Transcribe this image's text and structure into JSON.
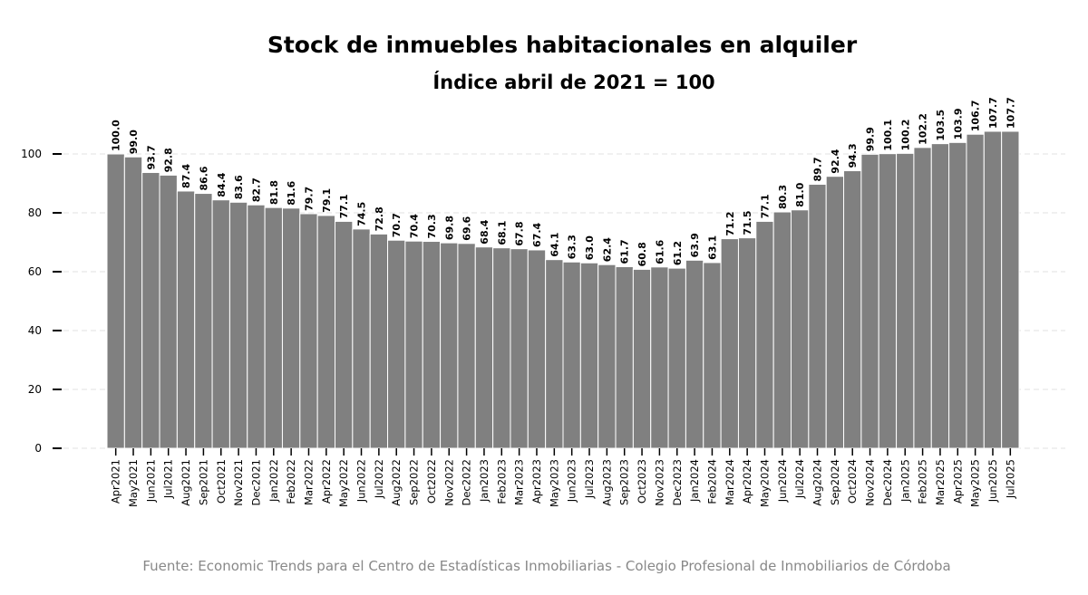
{
  "chart_data": {
    "type": "bar",
    "title": "Stock de inmuebles habitacionales en alquiler",
    "subtitle": "Índice abril de 2021 = 100",
    "source": "Fuente: Economic Trends para el Centro de Estadísticas Inmobiliarias - Colegio Profesional de Inmobiliarios de Córdoba",
    "categories": [
      "Apr2021",
      "May2021",
      "Jun2021",
      "Jul2021",
      "Aug2021",
      "Sep2021",
      "Oct2021",
      "Nov2021",
      "Dec2021",
      "Jan2022",
      "Feb2022",
      "Mar2022",
      "Apr2022",
      "May2022",
      "Jun2022",
      "Jul2022",
      "Aug2022",
      "Sep2022",
      "Oct2022",
      "Nov2022",
      "Dec2022",
      "Jan2023",
      "Feb2023",
      "Mar2023",
      "Apr2023",
      "May2023",
      "Jun2023",
      "Jul2023",
      "Aug2023",
      "Sep2023",
      "Oct2023",
      "Nov2023",
      "Dec2023",
      "Jan2024",
      "Feb2024",
      "Mar2024",
      "Apr2024",
      "May2024",
      "Jun2024",
      "Jul2024",
      "Aug2024",
      "Sep2024",
      "Oct2024",
      "Nov2024",
      "Dec2024",
      "Jan2025",
      "Feb2025",
      "Mar2025",
      "Apr2025",
      "May2025",
      "Jun2025",
      "Jul2025"
    ],
    "values": [
      100,
      99,
      93.7,
      92.8,
      87.4,
      86.6,
      84.4,
      83.6,
      82.7,
      81.8,
      81.6,
      79.7,
      79.1,
      77.1,
      74.5,
      72.8,
      70.7,
      70.4,
      70.3,
      69.8,
      69.6,
      68.4,
      68.1,
      67.8,
      67.4,
      64.1,
      63.3,
      63,
      62.4,
      61.7,
      60.8,
      61.6,
      61.2,
      63.9,
      63.1,
      71.2,
      71.5,
      77.1,
      80.3,
      81,
      89.7,
      92.4,
      94.3,
      99.9,
      100.1,
      100.2,
      102.2,
      103.5,
      103.9,
      106.7,
      107.7,
      107.7
    ],
    "value_labels": [
      "100.0",
      "99.0",
      "93.7",
      "92.8",
      "87.4",
      "86.6",
      "84.4",
      "83.6",
      "82.7",
      "81.8",
      "81.6",
      "79.7",
      "79.1",
      "77.1",
      "74.5",
      "72.8",
      "70.7",
      "70.4",
      "70.3",
      "69.8",
      "69.6",
      "68.4",
      "68.1",
      "67.8",
      "67.4",
      "64.1",
      "63.3",
      "63.0",
      "62.4",
      "61.7",
      "60.8",
      "61.6",
      "61.2",
      "63.9",
      "63.1",
      "71.2",
      "71.5",
      "77.1",
      "80.3",
      "81.0",
      "89.7",
      "92.4",
      "94.3",
      "99.9",
      "100.1",
      "100.2",
      "102.2",
      "103.5",
      "103.9",
      "106.7",
      "107.7",
      "107.7"
    ],
    "color": "#808080",
    "ylim": [
      0,
      113
    ],
    "yticks": [
      0,
      20,
      40,
      60,
      80,
      100
    ],
    "grid": true
  }
}
